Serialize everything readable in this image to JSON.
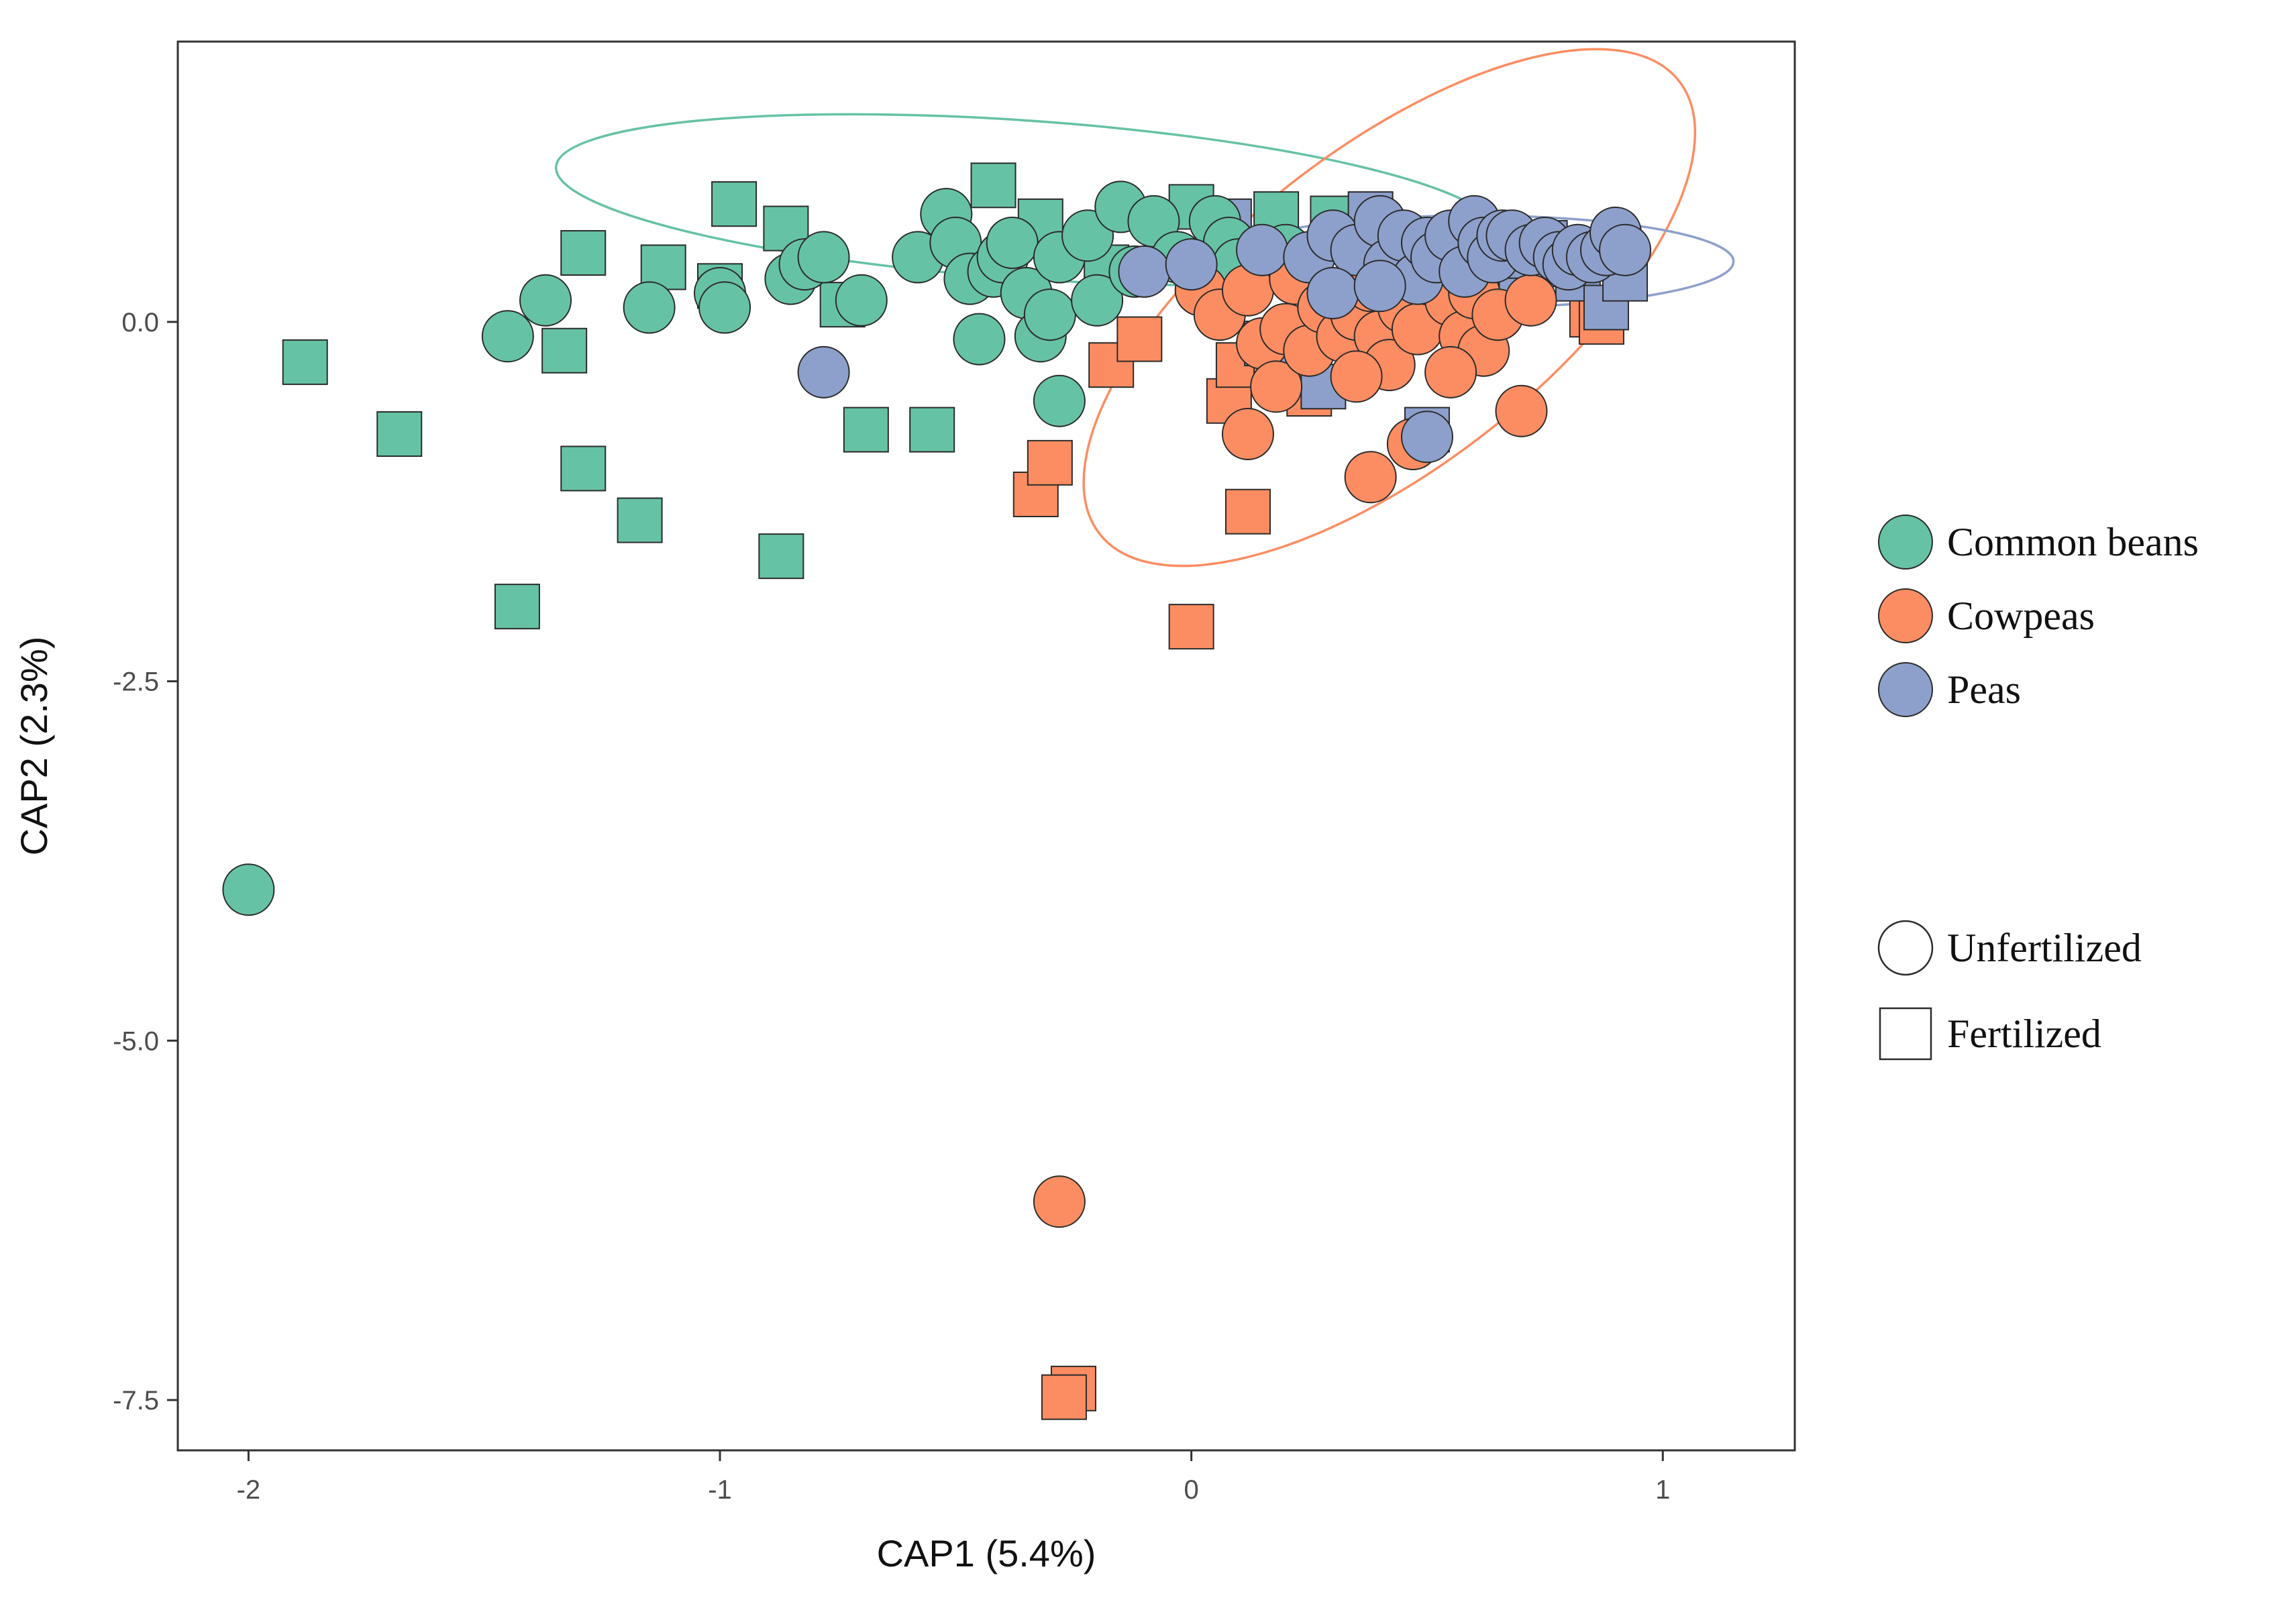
{
  "chart_data": {
    "type": "scatter",
    "title": "",
    "xlabel": "CAP1 (5.4%)",
    "ylabel": "CAP2 (2.3%)",
    "xlim": [
      -2.15,
      1.28
    ],
    "ylim": [
      -7.85,
      1.95
    ],
    "x_ticks": [
      -2,
      -1,
      0,
      1
    ],
    "x_tick_labels": [
      "-2",
      "-1",
      "0",
      "1"
    ],
    "y_ticks": [
      0.0,
      -2.5,
      -5.0,
      -7.5
    ],
    "y_tick_labels": [
      "0.0",
      "-2.5",
      "-5.0",
      "-7.5"
    ],
    "grid": false,
    "legend_position": "right",
    "colors": {
      "Common beans": "#66c2a5",
      "Cowpeas": "#fc8d62",
      "Peas": "#8da0cb"
    },
    "legend": {
      "species": [
        {
          "label": "Common beans",
          "color": "#66c2a5"
        },
        {
          "label": "Cowpeas",
          "color": "#fc8d62"
        },
        {
          "label": "Peas",
          "color": "#8da0cb"
        }
      ],
      "treatments": [
        {
          "label": "Unfertilized",
          "shape": "circle"
        },
        {
          "label": "Fertilized",
          "shape": "square"
        }
      ]
    },
    "ellipses": [
      {
        "series": "Common beans",
        "center": [
          -0.35,
          0.85
        ],
        "rx": 1.0,
        "ry": 0.55,
        "angle_deg": -4
      },
      {
        "series": "Cowpeas",
        "center": [
          0.42,
          0.1
        ],
        "rx": 0.78,
        "ry": 1.1,
        "angle_deg": 38
      },
      {
        "series": "Peas",
        "center": [
          0.6,
          0.42
        ],
        "rx": 0.55,
        "ry": 0.32,
        "angle_deg": 0
      }
    ],
    "series": [
      {
        "name": "Common beans",
        "treatment": "Unfertilized",
        "shape": "circle",
        "points": [
          [
            -2.0,
            -3.95
          ],
          [
            -1.45,
            -0.1
          ],
          [
            -1.37,
            0.15
          ],
          [
            -1.15,
            0.1
          ],
          [
            -1.0,
            0.2
          ],
          [
            -0.99,
            0.1
          ],
          [
            -0.85,
            0.3
          ],
          [
            -0.82,
            0.4
          ],
          [
            -0.78,
            0.45
          ],
          [
            -0.7,
            0.15
          ],
          [
            -0.58,
            0.45
          ],
          [
            -0.52,
            0.75
          ],
          [
            -0.5,
            0.55
          ],
          [
            -0.47,
            0.3
          ],
          [
            -0.45,
            -0.12
          ],
          [
            -0.42,
            0.35
          ],
          [
            -0.4,
            0.45
          ],
          [
            -0.38,
            0.55
          ],
          [
            -0.35,
            0.2
          ],
          [
            -0.32,
            -0.1
          ],
          [
            -0.3,
            0.05
          ],
          [
            -0.28,
            0.45
          ],
          [
            -0.28,
            -0.55
          ],
          [
            -0.22,
            0.6
          ],
          [
            -0.2,
            0.15
          ],
          [
            -0.15,
            0.8
          ],
          [
            -0.12,
            0.35
          ],
          [
            -0.08,
            0.7
          ],
          [
            -0.03,
            0.45
          ],
          [
            0.05,
            0.7
          ],
          [
            0.08,
            0.55
          ],
          [
            0.1,
            0.4
          ],
          [
            0.2,
            0.5
          ]
        ]
      },
      {
        "name": "Common beans",
        "treatment": "Fertilized",
        "shape": "square",
        "points": [
          [
            -1.88,
            -0.28
          ],
          [
            -1.68,
            -0.78
          ],
          [
            -1.43,
            -1.98
          ],
          [
            -1.33,
            -0.2
          ],
          [
            -1.29,
            0.48
          ],
          [
            -1.29,
            -1.02
          ],
          [
            -1.17,
            -1.38
          ],
          [
            -1.12,
            0.38
          ],
          [
            -1.0,
            0.25
          ],
          [
            -0.97,
            0.82
          ],
          [
            -0.87,
            -1.63
          ],
          [
            -0.86,
            0.65
          ],
          [
            -0.74,
            0.12
          ],
          [
            -0.69,
            -0.75
          ],
          [
            -0.55,
            -0.75
          ],
          [
            -0.45,
            0.4
          ],
          [
            -0.42,
            0.95
          ],
          [
            -0.32,
            0.7
          ],
          [
            -0.18,
            0.38
          ],
          [
            0.0,
            0.8
          ],
          [
            0.18,
            0.75
          ],
          [
            0.3,
            0.72
          ],
          [
            0.2,
            0.45
          ]
        ]
      },
      {
        "name": "Cowpeas",
        "treatment": "Unfertilized",
        "shape": "circle",
        "points": [
          [
            -0.28,
            -6.12
          ],
          [
            0.02,
            0.22
          ],
          [
            0.06,
            0.05
          ],
          [
            0.12,
            0.22
          ],
          [
            0.15,
            -0.15
          ],
          [
            0.18,
            -0.45
          ],
          [
            0.2,
            -0.05
          ],
          [
            0.22,
            0.3
          ],
          [
            0.25,
            -0.2
          ],
          [
            0.28,
            0.1
          ],
          [
            0.32,
            -0.1
          ],
          [
            0.35,
            0.05
          ],
          [
            0.38,
            0.25
          ],
          [
            0.4,
            -0.1
          ],
          [
            0.42,
            -0.3
          ],
          [
            0.45,
            0.1
          ],
          [
            0.48,
            -0.05
          ],
          [
            0.5,
            0.3
          ],
          [
            0.55,
            0.15
          ],
          [
            0.58,
            -0.1
          ],
          [
            0.6,
            0.2
          ],
          [
            0.62,
            -0.2
          ],
          [
            0.65,
            0.05
          ],
          [
            0.72,
            0.15
          ],
          [
            0.12,
            -0.78
          ],
          [
            0.38,
            -1.08
          ],
          [
            0.47,
            -0.85
          ],
          [
            0.7,
            -0.62
          ],
          [
            0.55,
            -0.35
          ],
          [
            0.35,
            -0.38
          ]
        ]
      },
      {
        "name": "Cowpeas",
        "treatment": "Fertilized",
        "shape": "square",
        "points": [
          [
            -0.25,
            -7.42
          ],
          [
            -0.27,
            -7.48
          ],
          [
            -0.33,
            -1.2
          ],
          [
            -0.3,
            -0.98
          ],
          [
            -0.17,
            -0.3
          ],
          [
            -0.11,
            -0.12
          ],
          [
            0.0,
            -2.12
          ],
          [
            0.08,
            -0.55
          ],
          [
            0.1,
            -0.3
          ],
          [
            0.12,
            -1.32
          ],
          [
            0.18,
            -0.2
          ],
          [
            0.25,
            -0.5
          ],
          [
            0.3,
            0.0
          ],
          [
            0.42,
            -0.18
          ],
          [
            0.55,
            0.1
          ],
          [
            0.6,
            0.0
          ],
          [
            0.85,
            0.05
          ],
          [
            0.87,
            0.0
          ]
        ]
      },
      {
        "name": "Peas",
        "treatment": "Unfertilized",
        "shape": "circle",
        "points": [
          [
            -0.78,
            -0.35
          ],
          [
            -0.1,
            0.35
          ],
          [
            0.0,
            0.4
          ],
          [
            0.15,
            0.5
          ],
          [
            0.25,
            0.45
          ],
          [
            0.3,
            0.6
          ],
          [
            0.35,
            0.5
          ],
          [
            0.4,
            0.7
          ],
          [
            0.42,
            0.4
          ],
          [
            0.45,
            0.6
          ],
          [
            0.48,
            0.3
          ],
          [
            0.5,
            0.55
          ],
          [
            0.52,
            0.45
          ],
          [
            0.55,
            0.6
          ],
          [
            0.58,
            0.35
          ],
          [
            0.6,
            0.7
          ],
          [
            0.62,
            0.55
          ],
          [
            0.64,
            0.45
          ],
          [
            0.66,
            0.6
          ],
          [
            0.68,
            0.6
          ],
          [
            0.72,
            0.5
          ],
          [
            0.75,
            0.55
          ],
          [
            0.78,
            0.45
          ],
          [
            0.8,
            0.4
          ],
          [
            0.82,
            0.5
          ],
          [
            0.85,
            0.45
          ],
          [
            0.88,
            0.5
          ],
          [
            0.9,
            0.62
          ],
          [
            0.92,
            0.5
          ],
          [
            0.5,
            -0.8
          ],
          [
            0.3,
            0.2
          ],
          [
            0.4,
            0.25
          ]
        ]
      },
      {
        "name": "Peas",
        "treatment": "Fertilized",
        "shape": "square",
        "points": [
          [
            0.08,
            0.7
          ],
          [
            0.16,
            -0.15
          ],
          [
            0.28,
            -0.45
          ],
          [
            0.38,
            0.75
          ],
          [
            0.42,
            0.2
          ],
          [
            0.48,
            0.45
          ],
          [
            0.5,
            -0.75
          ],
          [
            0.52,
            0.3
          ],
          [
            0.58,
            0.6
          ],
          [
            0.62,
            0.2
          ],
          [
            0.66,
            0.4
          ],
          [
            0.7,
            0.15
          ],
          [
            0.75,
            0.55
          ],
          [
            0.78,
            0.4
          ],
          [
            0.82,
            0.3
          ],
          [
            0.85,
            0.45
          ],
          [
            0.88,
            0.1
          ],
          [
            0.92,
            0.3
          ],
          [
            0.5,
            0.2
          ],
          [
            0.2,
            0.4
          ]
        ]
      }
    ]
  }
}
